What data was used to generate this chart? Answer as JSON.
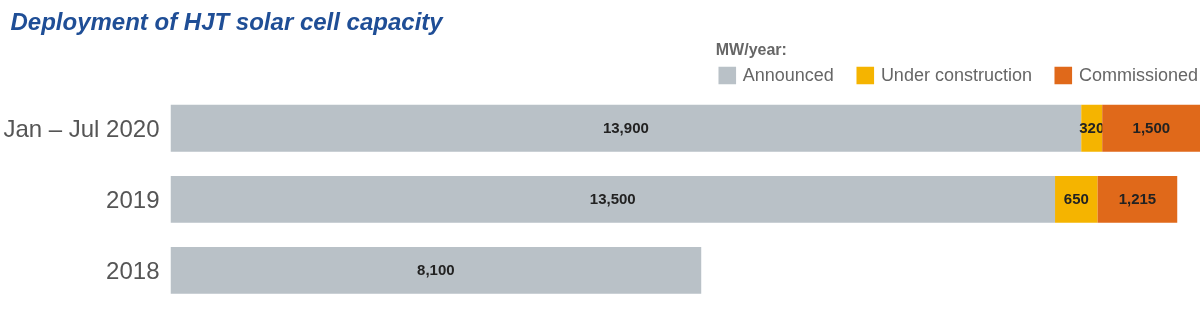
{
  "chart_data": {
    "type": "bar",
    "orientation": "horizontal",
    "stacked": true,
    "title": "Deployment of HJT solar cell capacity",
    "legend_title": "MW/year:",
    "legend": "top right",
    "grid": false,
    "categories": [
      "Jan – Jul 2020",
      "2019",
      "2018"
    ],
    "series": [
      {
        "name": "Announced",
        "color": "#b9c1c7",
        "values": [
          13900,
          13500,
          8100
        ],
        "value_labels": [
          "13,900",
          "13,500",
          "8,100"
        ]
      },
      {
        "name": "Under construction",
        "color": "#f5b400",
        "values": [
          320,
          650,
          null
        ],
        "value_labels": [
          "320",
          "650",
          null
        ]
      },
      {
        "name": "Commissioned",
        "color": "#e0691a",
        "values": [
          1500,
          1215,
          null
        ],
        "value_labels": [
          "1,500",
          "1,215",
          null
        ]
      }
    ]
  }
}
